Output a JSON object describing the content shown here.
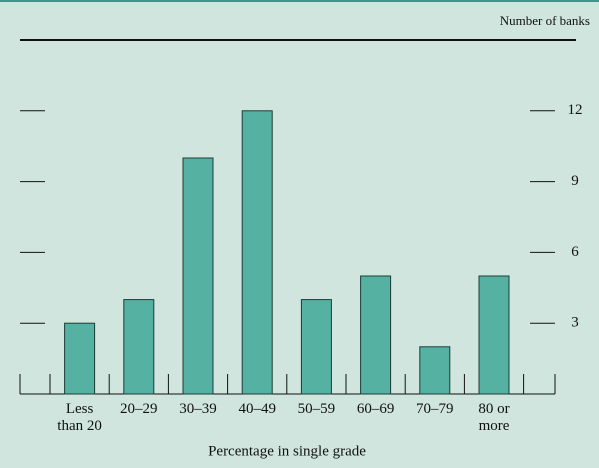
{
  "chart_data": {
    "type": "bar",
    "y_axis_label": "Number of banks",
    "x_axis_label": "Percentage in single grade",
    "categories": [
      "Less than 20",
      "20–29",
      "30–39",
      "40–49",
      "50–59",
      "60–69",
      "70–79",
      "80 or more"
    ],
    "values": [
      3,
      4,
      10,
      12,
      4,
      5,
      2,
      5
    ],
    "color": "#55b2a2",
    "ylim": [
      0,
      15
    ],
    "yticks": [
      3,
      6,
      9,
      12
    ],
    "grid": false
  }
}
